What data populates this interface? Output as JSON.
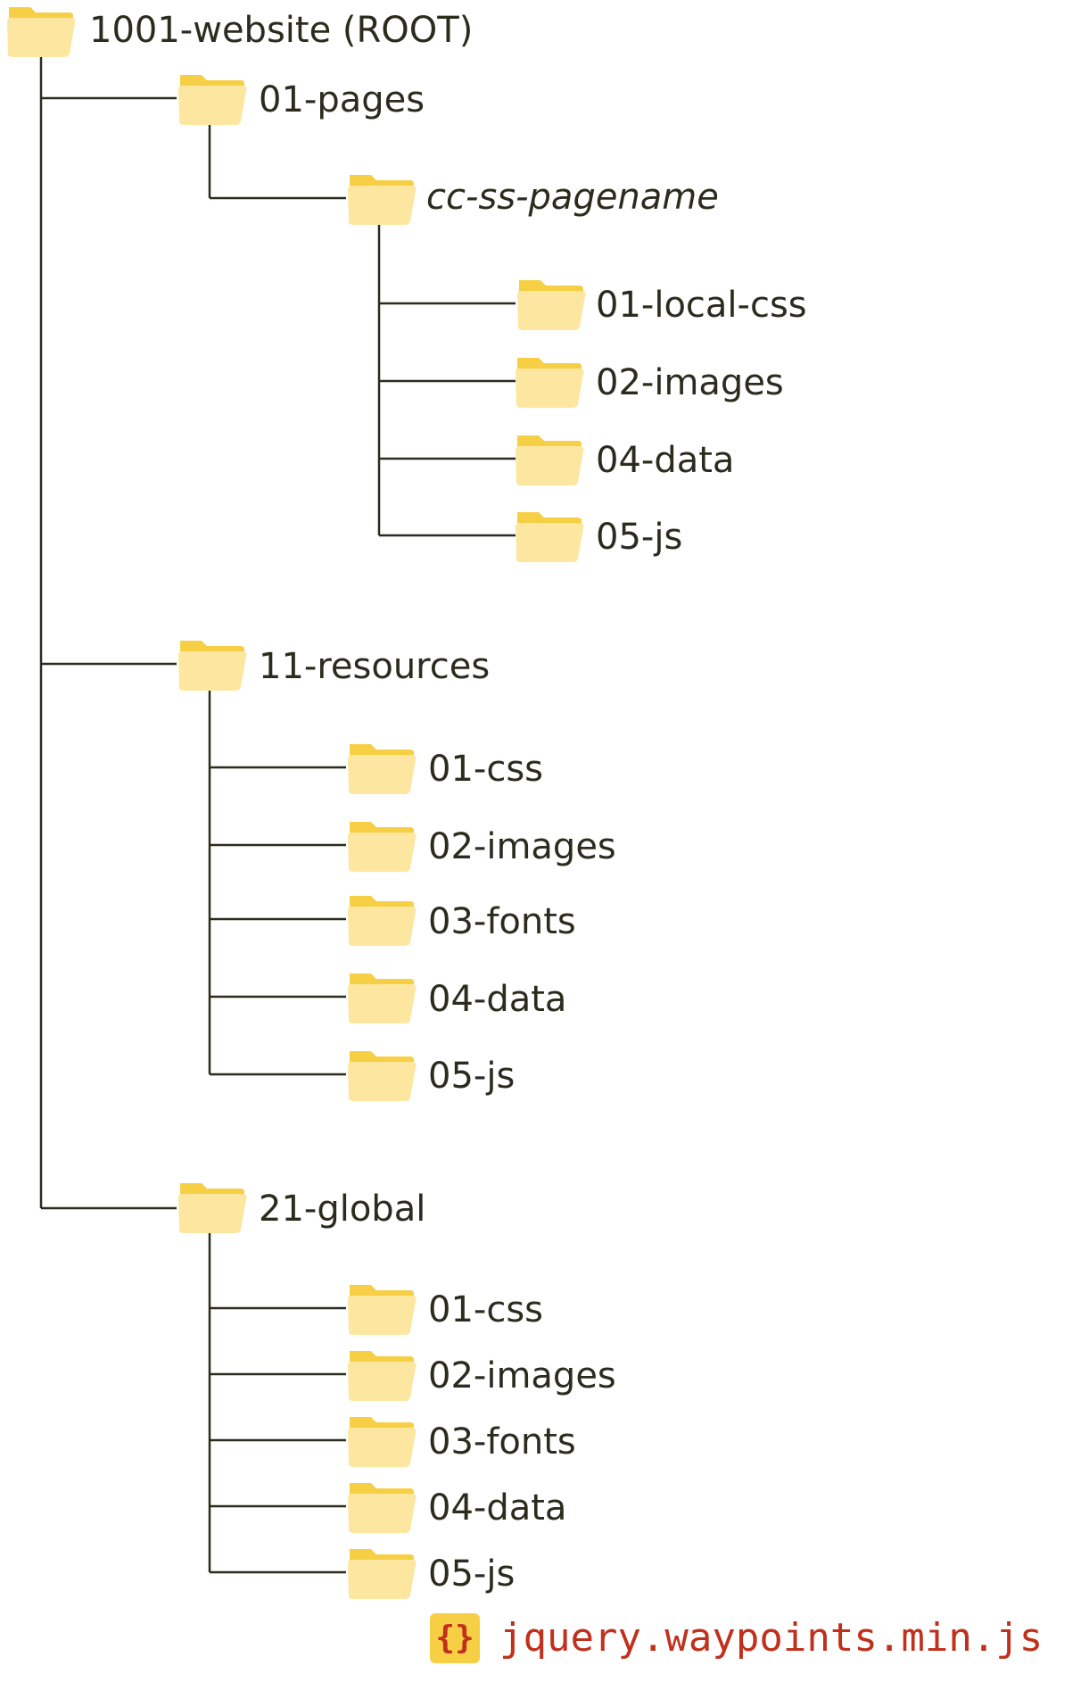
{
  "root": {
    "label": "1001-website (ROOT)",
    "children": [
      {
        "label": "01-pages",
        "children": [
          {
            "label": "cc-ss-pagename",
            "italic": true,
            "children": [
              {
                "label": "01-local-css"
              },
              {
                "label": "02-images"
              },
              {
                "label": "04-data"
              },
              {
                "label": "05-js"
              }
            ]
          }
        ]
      },
      {
        "label": "11-resources",
        "children": [
          {
            "label": "01-css"
          },
          {
            "label": "02-images"
          },
          {
            "label": "03-fonts"
          },
          {
            "label": "04-data"
          },
          {
            "label": "05-js"
          }
        ]
      },
      {
        "label": "21-global",
        "children": [
          {
            "label": "01-css"
          },
          {
            "label": "02-images"
          },
          {
            "label": "03-fonts"
          },
          {
            "label": "04-data"
          },
          {
            "label": "05-js"
          }
        ]
      }
    ]
  },
  "file": {
    "icon": "{}",
    "name": "jquery.waypoints.min.js"
  },
  "colors": {
    "folder_back": "#f7cf45",
    "folder_front": "#fde7a0",
    "line": "#2b2b1e",
    "file_text": "#c0301c"
  },
  "icons": {
    "folder": "folder-icon",
    "file": "code-file-icon"
  }
}
